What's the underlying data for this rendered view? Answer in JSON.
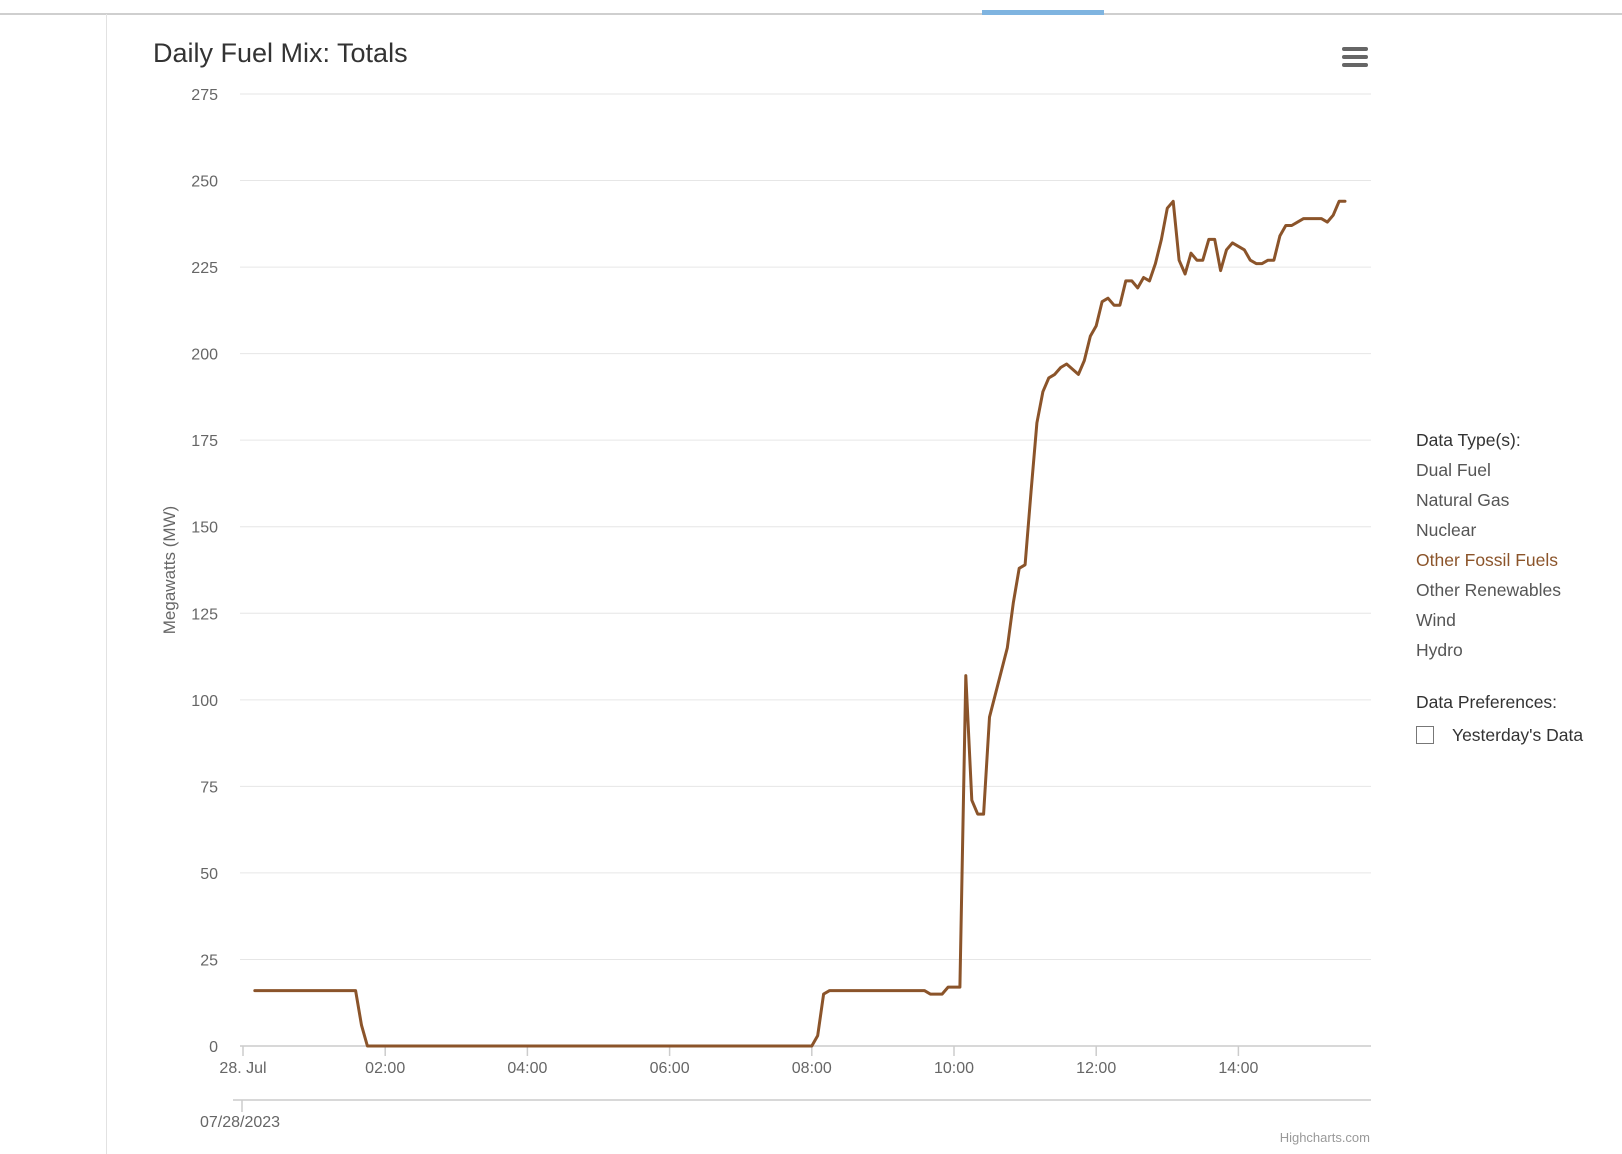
{
  "chart_title": "Daily Fuel Mix: Totals",
  "credit": "Highcharts.com",
  "navigator_date": "07/28/2023",
  "legend": {
    "heading": "Data Type(s):",
    "items": [
      {
        "label": "Dual Fuel",
        "active": false
      },
      {
        "label": "Natural Gas",
        "active": false
      },
      {
        "label": "Nuclear",
        "active": false
      },
      {
        "label": "Other Fossil Fuels",
        "active": true
      },
      {
        "label": "Other Renewables",
        "active": false
      },
      {
        "label": "Wind",
        "active": false
      },
      {
        "label": "Hydro",
        "active": false
      }
    ],
    "preferences_heading": "Data Preferences:",
    "yesterday_label": "Yesterday's Data",
    "yesterday_checked": false
  },
  "colors": {
    "series": "#8b542a",
    "grid": "#e6e6e6",
    "axis_text": "#666666",
    "accent": "#7fb4e0"
  },
  "icons": {
    "menu": "hamburger-menu-icon"
  },
  "chart_data": {
    "type": "line",
    "title": "Daily Fuel Mix: Totals",
    "xlabel": "",
    "ylabel": "Megawatts (MW)",
    "ylim": [
      0,
      275
    ],
    "yticks": [
      "0",
      "25",
      "50",
      "75",
      "100",
      "125",
      "150",
      "175",
      "200",
      "225",
      "250",
      "275"
    ],
    "xlim": [
      "00:00",
      "16:00"
    ],
    "xticks": [
      "28. Jul",
      "02:00",
      "04:00",
      "06:00",
      "08:00",
      "10:00",
      "12:00",
      "14:00"
    ],
    "grid": true,
    "legend_position": "right",
    "series": [
      {
        "name": "Other Fossil Fuels",
        "x": [
          "00:10",
          "01:35",
          "01:40",
          "01:45",
          "08:00",
          "08:05",
          "08:10",
          "08:15",
          "09:35",
          "09:40",
          "09:50",
          "09:55",
          "10:05",
          "10:10",
          "10:15",
          "10:20",
          "10:25",
          "10:30",
          "10:45",
          "10:50",
          "10:55",
          "11:00",
          "11:05",
          "11:10",
          "11:15",
          "11:20",
          "11:25",
          "11:30",
          "11:35",
          "11:45",
          "11:50",
          "11:55",
          "12:00",
          "12:05",
          "12:10",
          "12:15",
          "12:20",
          "12:25",
          "12:30",
          "12:35",
          "12:40",
          "12:45",
          "12:50",
          "12:55",
          "13:00",
          "13:05",
          "13:10",
          "13:15",
          "13:20",
          "13:25",
          "13:30",
          "13:35",
          "13:40",
          "13:45",
          "13:50",
          "13:55",
          "14:05",
          "14:10",
          "14:15",
          "14:20",
          "14:25",
          "14:30",
          "14:35",
          "14:40",
          "14:45",
          "14:50",
          "14:55",
          "15:00",
          "15:10",
          "15:15",
          "15:20",
          "15:25",
          "15:30"
        ],
        "values": [
          16,
          16,
          6,
          0,
          0,
          3,
          15,
          16,
          16,
          15,
          15,
          17,
          17,
          107,
          71,
          67,
          67,
          95,
          115,
          128,
          138,
          139,
          160,
          180,
          189,
          193,
          194,
          196,
          197,
          194,
          198,
          205,
          208,
          215,
          216,
          214,
          214,
          221,
          221,
          219,
          222,
          221,
          226,
          233,
          242,
          244,
          227,
          223,
          229,
          227,
          227,
          233,
          233,
          224,
          230,
          232,
          230,
          227,
          226,
          226,
          227,
          227,
          234,
          237,
          237,
          238,
          239,
          239,
          239,
          238,
          240,
          244,
          244
        ]
      }
    ]
  }
}
